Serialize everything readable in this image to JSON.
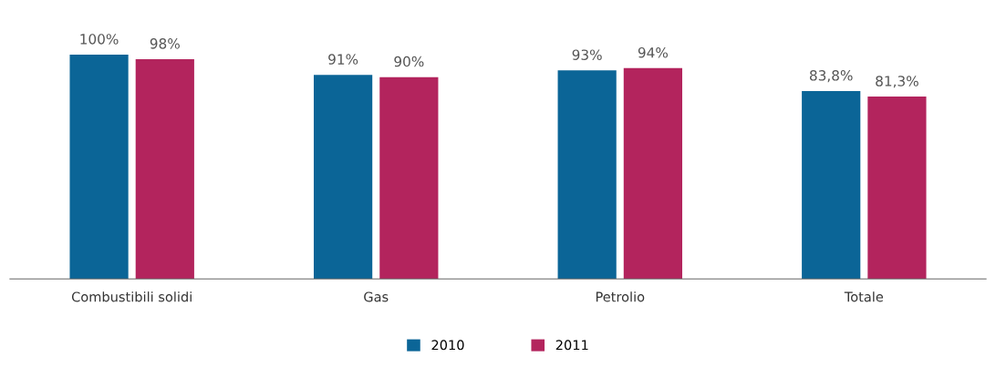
{
  "chart_data": {
    "type": "bar",
    "categories": [
      "Combustibili solidi",
      "Gas",
      "Petrolio",
      "Totale"
    ],
    "series": [
      {
        "name": "2010",
        "color": "#0b6597",
        "values": [
          100,
          91,
          93,
          83.8
        ],
        "value_labels": [
          "100%",
          "91%",
          "93%",
          "83,8%"
        ]
      },
      {
        "name": "2011",
        "color": "#b3245d",
        "values": [
          98,
          90,
          94,
          81.3
        ],
        "value_labels": [
          "98%",
          "90%",
          "94%",
          "81,3%"
        ]
      }
    ],
    "legend": "bottom",
    "grid": false
  }
}
